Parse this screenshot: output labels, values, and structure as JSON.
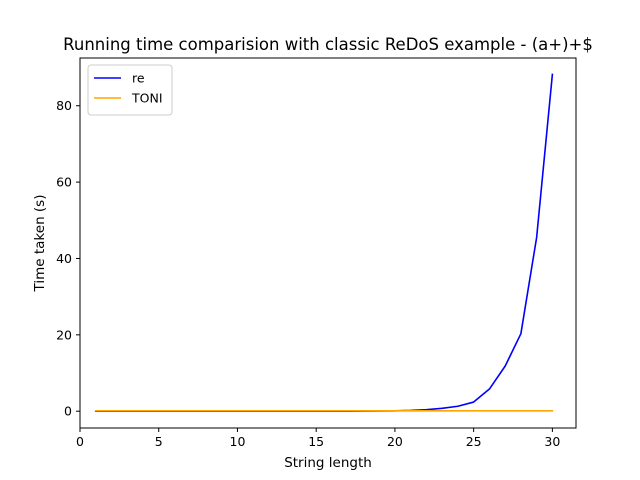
{
  "chart_data": {
    "type": "line",
    "title": "Running time comparision with classic ReDoS example - (a+)+$",
    "xlabel": "String length",
    "ylabel": "Time taken (s)",
    "xlim": [
      0.0,
      31.5
    ],
    "ylim": [
      -4.4,
      92.5
    ],
    "xticks": [
      0,
      5,
      10,
      15,
      20,
      25,
      30
    ],
    "yticks": [
      0,
      20,
      40,
      60,
      80
    ],
    "grid": false,
    "legend_position": "top-left",
    "x": [
      1,
      2,
      3,
      4,
      5,
      6,
      7,
      8,
      9,
      10,
      11,
      12,
      13,
      14,
      15,
      16,
      17,
      18,
      19,
      20,
      21,
      22,
      23,
      24,
      25,
      26,
      27,
      28,
      29,
      30
    ],
    "series": [
      {
        "name": "re",
        "color": "#0000ff",
        "values": [
          0,
          0,
          0,
          0,
          0,
          0,
          0,
          0,
          0,
          0,
          0,
          0,
          0,
          0,
          0,
          0,
          0.01,
          0.02,
          0.05,
          0.1,
          0.2,
          0.4,
          0.75,
          1.3,
          2.4,
          5.8,
          11.8,
          20.3,
          45.5,
          88.2
        ]
      },
      {
        "name": "TONI",
        "color": "#ffa500",
        "values": [
          0.1,
          0.1,
          0.1,
          0.1,
          0.1,
          0.1,
          0.1,
          0.1,
          0.1,
          0.1,
          0.1,
          0.1,
          0.1,
          0.1,
          0.1,
          0.1,
          0.1,
          0.1,
          0.1,
          0.1,
          0.1,
          0.1,
          0.1,
          0.1,
          0.1,
          0.1,
          0.1,
          0.1,
          0.1,
          0.1
        ]
      }
    ]
  }
}
